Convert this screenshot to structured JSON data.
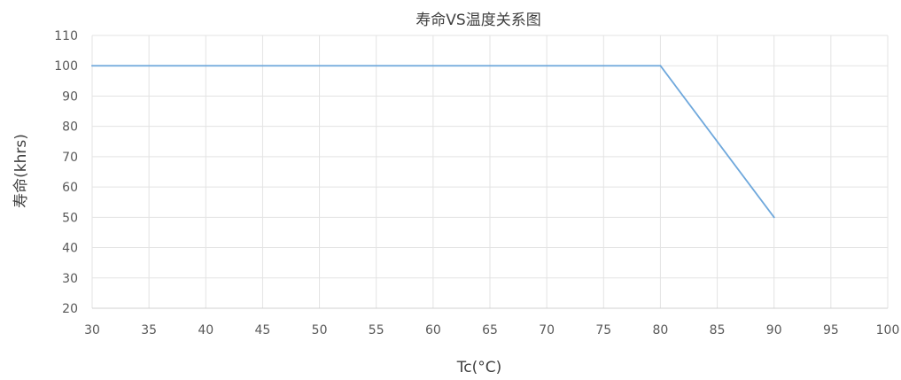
{
  "chart_data": {
    "type": "line",
    "title": "寿命VS温度关系图",
    "xlabel": "Tc(°C)",
    "ylabel": "寿命(khrs)",
    "xlim": [
      30,
      100
    ],
    "ylim": [
      20,
      110
    ],
    "xticks": [
      30,
      35,
      40,
      45,
      50,
      55,
      60,
      65,
      70,
      75,
      80,
      85,
      90,
      95,
      100
    ],
    "yticks": [
      20,
      30,
      40,
      50,
      60,
      70,
      80,
      90,
      100,
      110
    ],
    "grid": true,
    "legend": "none",
    "series": [
      {
        "color": "#6fa8dc",
        "points": [
          {
            "x": 30,
            "y": 100
          },
          {
            "x": 80,
            "y": 100
          },
          {
            "x": 90,
            "y": 50
          }
        ]
      }
    ]
  }
}
